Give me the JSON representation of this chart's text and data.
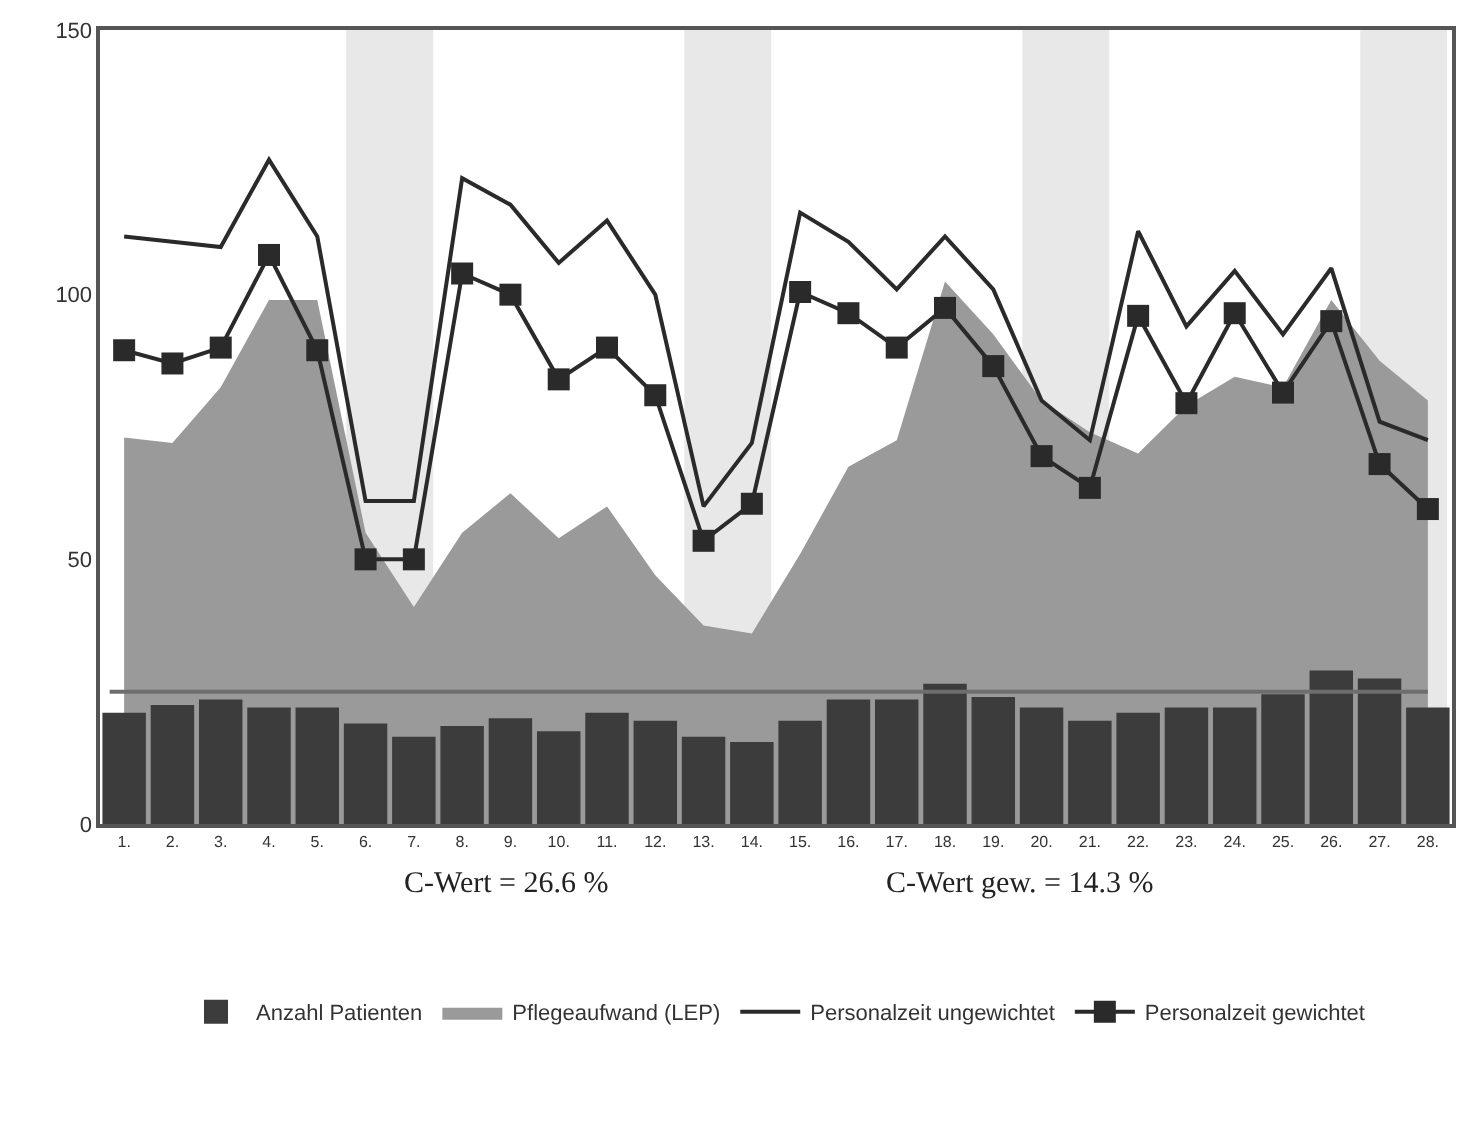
{
  "chart_data": {
    "type": "bar",
    "categories": [
      "1.",
      "2.",
      "3.",
      "4.",
      "5.",
      "6.",
      "7.",
      "8.",
      "9.",
      "10.",
      "11.",
      "12.",
      "13.",
      "14.",
      "15.",
      "16.",
      "17.",
      "18.",
      "19.",
      "20.",
      "21.",
      "22.",
      "23.",
      "24.",
      "25.",
      "26.",
      "27.",
      "28."
    ],
    "series": [
      {
        "name": "Anzahl Patienten",
        "color": "#3c3c3c",
        "values": [
          21,
          22.5,
          23.5,
          22,
          22,
          19,
          16.5,
          18.5,
          20,
          17.5,
          21,
          19.5,
          16.5,
          15.5,
          19.5,
          23.5,
          23.5,
          26.5,
          24,
          22,
          19.5,
          21,
          22,
          22,
          24.5,
          29,
          27.5,
          22
        ]
      },
      {
        "name": "Pflegeaufwand (LEP)",
        "type": "area",
        "color": "#9a9a9a",
        "values": [
          73,
          72,
          82.5,
          99,
          99,
          55,
          41,
          55,
          62.5,
          54,
          60,
          47,
          37.5,
          36,
          51,
          67.5,
          72.5,
          102.5,
          92.5,
          80,
          74,
          70,
          79,
          84.5,
          82.5,
          99,
          87.5,
          80
        ]
      },
      {
        "name": "Personalzeit ungewichtet",
        "type": "line",
        "color": "#2a2a2a",
        "marker": "none",
        "values": [
          111,
          110,
          109,
          125.5,
          111,
          61,
          61,
          122,
          117,
          106,
          114,
          100,
          60,
          72,
          115.5,
          110,
          101,
          111,
          101,
          80,
          72.5,
          112,
          94,
          104.5,
          92.5,
          105,
          76,
          72.5
        ]
      },
      {
        "name": "Personalzeit gewichtet",
        "type": "line",
        "color": "#2a2a2a",
        "marker": "square",
        "values": [
          89.5,
          87,
          90,
          107.5,
          89.5,
          50,
          50,
          104,
          100,
          84,
          90,
          81,
          53.5,
          60.5,
          100.5,
          96.5,
          90,
          97.5,
          86.5,
          69.5,
          63.5,
          96,
          79.5,
          96.5,
          81.5,
          95,
          68,
          59.5
        ]
      }
    ],
    "ylim": [
      0,
      150
    ],
    "yticks": [
      0,
      50,
      100,
      150
    ],
    "grid": false,
    "legend": "bottom",
    "ref_lines": [
      {
        "axis": "y",
        "value": 25,
        "color": "#6e6e6e"
      }
    ],
    "bands": [
      {
        "axis": "x",
        "from": "6.",
        "to": "7.",
        "color": "#e8e8e8"
      },
      {
        "axis": "x",
        "from": "13.",
        "to": "14.",
        "color": "#e8e8e8"
      },
      {
        "axis": "x",
        "from": "20.",
        "to": "21.",
        "color": "#e8e8e8"
      },
      {
        "axis": "x",
        "from": "27.",
        "to": "28.",
        "color": "#e8e8e8"
      }
    ],
    "annotations": [
      "C-Wert = 26.6 %",
      "C-Wert gew. = 14.3 %"
    ]
  }
}
